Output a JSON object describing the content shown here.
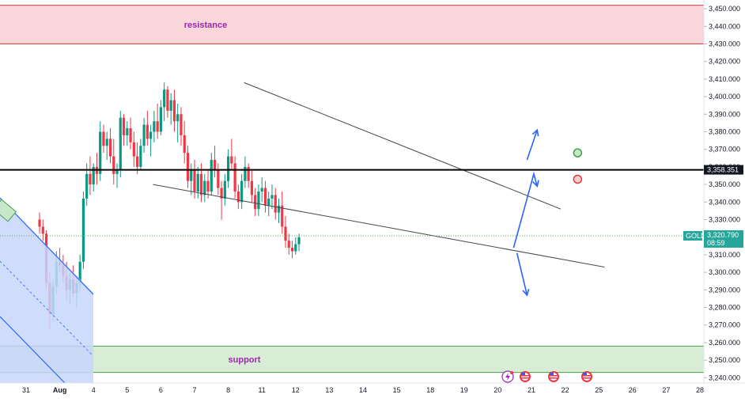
{
  "chart_data": {
    "type": "candlestick",
    "symbol": "GOLD",
    "y_axis": {
      "min": 3237,
      "max": 3455,
      "ticks": [
        "3,450.000",
        "3,440.000",
        "3,430.000",
        "3,420.000",
        "3,410.000",
        "3,400.000",
        "3,390.000",
        "3,380.000",
        "3,370.000",
        "3,360.000",
        "3,350.000",
        "3,340.000",
        "3,330.000",
        "3,320.000",
        "3,310.000",
        "3,300.000",
        "3,290.000",
        "3,280.000",
        "3,270.000",
        "3,260.000",
        "3,250.000",
        "3,240.000"
      ],
      "tick_values": [
        3450,
        3440,
        3430,
        3420,
        3410,
        3400,
        3390,
        3380,
        3370,
        3360,
        3350,
        3340,
        3330,
        3320,
        3310,
        3300,
        3290,
        3280,
        3270,
        3260,
        3250,
        3240
      ]
    },
    "x_axis": {
      "labels": [
        "31",
        "Aug",
        "4",
        "5",
        "6",
        "7",
        "8",
        "11",
        "12",
        "13",
        "14",
        "15",
        "18",
        "19",
        "20",
        "21",
        "22",
        "25",
        "26",
        "27",
        "28"
      ],
      "label_days": [
        0,
        1,
        2,
        3,
        4,
        5,
        6,
        7,
        8,
        9,
        10,
        11,
        12,
        13,
        14,
        15,
        16,
        17,
        18,
        19,
        20
      ],
      "bold_labels": [
        "Aug"
      ]
    },
    "current_price": {
      "symbol": "GOLD",
      "value": "3,320.790",
      "countdown": "08:59",
      "level": 3320.79
    },
    "horizontal_level": {
      "value": "3,358.351",
      "level": 3358.351
    },
    "zones": [
      {
        "name": "resistance",
        "label": "resistance",
        "top": 3452,
        "bottom": 3430,
        "fill": "#f9d6da",
        "border": "#e53935"
      },
      {
        "name": "support",
        "label": "support",
        "top": 3258,
        "bottom": 3243,
        "fill": "#d9ecd6",
        "border": "#43a047"
      }
    ],
    "channel_lines": [
      {
        "name": "wedge-upper",
        "from": {
          "day": 6.0,
          "price": 3408
        },
        "to": {
          "day": 15.4,
          "price": 3336
        }
      },
      {
        "name": "wedge-lower",
        "from": {
          "day": 3.3,
          "price": 3350
        },
        "to": {
          "day": 16.7,
          "price": 3303
        }
      }
    ],
    "forecast_arrows": [
      {
        "name": "up-arrow",
        "points": [
          [
            14.4,
            3364
          ],
          [
            14.7,
            3381
          ]
        ]
      },
      {
        "name": "zigzag-arrow",
        "points": [
          [
            14.0,
            3314
          ],
          [
            14.6,
            3356
          ],
          [
            14.7,
            3349
          ]
        ]
      },
      {
        "name": "down-arrow",
        "points": [
          [
            14.1,
            3311
          ],
          [
            14.4,
            3287
          ]
        ]
      }
    ],
    "markers": [
      {
        "name": "green-circle",
        "day": 15.9,
        "price": 3368,
        "color": "#43a047"
      },
      {
        "name": "red-circle",
        "day": 15.9,
        "price": 3353,
        "color": "#e53935"
      }
    ],
    "ohlc": [
      [
        -0.6,
        3330,
        3334,
        3322,
        3326
      ],
      [
        -0.5,
        3326,
        3330,
        3318,
        3322
      ],
      [
        -0.4,
        3322,
        3324,
        3290,
        3294
      ],
      [
        -0.3,
        3294,
        3300,
        3268,
        3276
      ],
      [
        -0.2,
        3276,
        3296,
        3272,
        3292
      ],
      [
        -0.1,
        3292,
        3312,
        3288,
        3306
      ],
      [
        0.0,
        3306,
        3314,
        3300,
        3304
      ],
      [
        0.1,
        3304,
        3310,
        3294,
        3298
      ],
      [
        0.2,
        3298,
        3306,
        3284,
        3290
      ],
      [
        0.3,
        3290,
        3300,
        3282,
        3296
      ],
      [
        0.4,
        3296,
        3304,
        3286,
        3288
      ],
      [
        0.5,
        3288,
        3298,
        3280,
        3294
      ],
      [
        0.6,
        3294,
        3310,
        3290,
        3306
      ],
      [
        0.7,
        3306,
        3346,
        3302,
        3342
      ],
      [
        0.8,
        3342,
        3362,
        3338,
        3356
      ],
      [
        0.9,
        3356,
        3366,
        3344,
        3350
      ],
      [
        1.0,
        3350,
        3362,
        3346,
        3360
      ],
      [
        1.1,
        3360,
        3368,
        3350,
        3356
      ],
      [
        1.2,
        3356,
        3386,
        3352,
        3380
      ],
      [
        1.3,
        3380,
        3384,
        3368,
        3372
      ],
      [
        1.4,
        3372,
        3380,
        3364,
        3376
      ],
      [
        1.5,
        3376,
        3382,
        3362,
        3366
      ],
      [
        1.6,
        3366,
        3376,
        3350,
        3356
      ],
      [
        1.7,
        3356,
        3362,
        3348,
        3358
      ],
      [
        1.8,
        3358,
        3392,
        3354,
        3388
      ],
      [
        1.9,
        3388,
        3390,
        3372,
        3378
      ],
      [
        2.0,
        3378,
        3386,
        3372,
        3382
      ],
      [
        2.1,
        3382,
        3388,
        3370,
        3374
      ],
      [
        2.2,
        3374,
        3380,
        3360,
        3366
      ],
      [
        2.3,
        3366,
        3374,
        3356,
        3360
      ],
      [
        2.4,
        3360,
        3376,
        3358,
        3372
      ],
      [
        2.5,
        3372,
        3388,
        3368,
        3384
      ],
      [
        2.6,
        3384,
        3392,
        3372,
        3376
      ],
      [
        2.7,
        3376,
        3384,
        3366,
        3380
      ],
      [
        2.8,
        3380,
        3392,
        3374,
        3386
      ],
      [
        2.9,
        3386,
        3396,
        3376,
        3380
      ],
      [
        3.0,
        3380,
        3398,
        3378,
        3394
      ],
      [
        3.1,
        3394,
        3408,
        3386,
        3404
      ],
      [
        3.2,
        3404,
        3406,
        3388,
        3392
      ],
      [
        3.3,
        3392,
        3402,
        3384,
        3398
      ],
      [
        3.4,
        3398,
        3404,
        3380,
        3386
      ],
      [
        3.5,
        3386,
        3396,
        3374,
        3390
      ],
      [
        3.6,
        3390,
        3394,
        3372,
        3378
      ],
      [
        3.7,
        3378,
        3386,
        3362,
        3368
      ],
      [
        3.8,
        3368,
        3372,
        3348,
        3352
      ],
      [
        3.9,
        3352,
        3362,
        3344,
        3358
      ],
      [
        4.0,
        3358,
        3364,
        3342,
        3346
      ],
      [
        4.1,
        3346,
        3360,
        3342,
        3356
      ],
      [
        4.2,
        3356,
        3362,
        3340,
        3344
      ],
      [
        4.3,
        3344,
        3356,
        3340,
        3352
      ],
      [
        4.4,
        3352,
        3358,
        3342,
        3346
      ],
      [
        4.5,
        3346,
        3368,
        3344,
        3364
      ],
      [
        4.6,
        3364,
        3372,
        3354,
        3358
      ],
      [
        4.7,
        3358,
        3362,
        3344,
        3348
      ],
      [
        4.8,
        3348,
        3352,
        3330,
        3342
      ],
      [
        4.9,
        3342,
        3356,
        3338,
        3352
      ],
      [
        5.0,
        3352,
        3370,
        3348,
        3366
      ],
      [
        5.1,
        3366,
        3376,
        3358,
        3362
      ],
      [
        5.2,
        3362,
        3366,
        3342,
        3346
      ],
      [
        5.3,
        3346,
        3350,
        3336,
        3340
      ],
      [
        5.4,
        3340,
        3356,
        3336,
        3352
      ],
      [
        5.5,
        3352,
        3366,
        3348,
        3360
      ],
      [
        5.6,
        3360,
        3362,
        3348,
        3352
      ],
      [
        5.7,
        3352,
        3358,
        3340,
        3344
      ],
      [
        5.8,
        3344,
        3348,
        3332,
        3336
      ],
      [
        5.9,
        3336,
        3350,
        3332,
        3346
      ],
      [
        6.0,
        3346,
        3354,
        3340,
        3348
      ],
      [
        6.1,
        3348,
        3352,
        3334,
        3338
      ],
      [
        6.2,
        3338,
        3346,
        3332,
        3342
      ],
      [
        6.3,
        3342,
        3350,
        3336,
        3344
      ],
      [
        6.4,
        3344,
        3348,
        3330,
        3334
      ],
      [
        6.5,
        3334,
        3342,
        3328,
        3338
      ],
      [
        6.6,
        3338,
        3346,
        3322,
        3326
      ],
      [
        6.7,
        3326,
        3332,
        3314,
        3318
      ],
      [
        6.8,
        3318,
        3322,
        3310,
        3314
      ],
      [
        6.9,
        3314,
        3318,
        3308,
        3312
      ],
      [
        7.0,
        3312,
        3320,
        3310,
        3316
      ],
      [
        7.1,
        3316,
        3322,
        3312,
        3320
      ]
    ]
  }
}
